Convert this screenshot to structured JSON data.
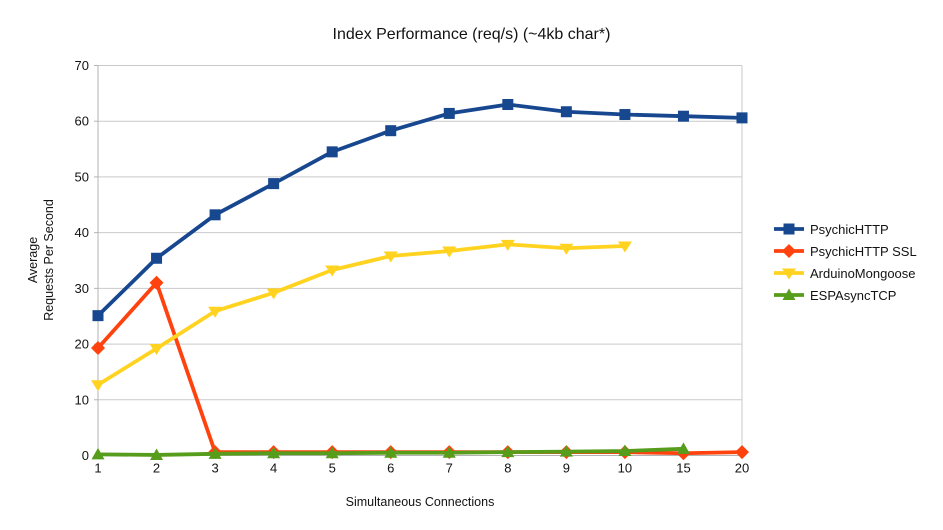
{
  "chart_data": {
    "type": "line",
    "title": "Index Performance (req/s) (~4kb char*)",
    "xlabel": "Simultaneous Connections",
    "ylabel_lines": [
      "Average",
      "Requests Per Second"
    ],
    "categories": [
      "1",
      "2",
      "3",
      "4",
      "5",
      "6",
      "7",
      "8",
      "9",
      "10",
      "15",
      "20"
    ],
    "y_ticks": [
      0,
      10,
      20,
      30,
      40,
      50,
      60,
      70
    ],
    "ylim": [
      0,
      70
    ],
    "grid": "horizontal",
    "legend_position": "right",
    "series": [
      {
        "name": "PsychicHTTP",
        "color": "#17478f",
        "marker": "square",
        "values": [
          25.1,
          35.4,
          43.2,
          48.8,
          54.5,
          58.3,
          61.4,
          63.0,
          61.7,
          61.2,
          60.9,
          60.6
        ]
      },
      {
        "name": "PsychicHTTP SSL",
        "color": "#ff420e",
        "marker": "diamond",
        "values": [
          19.3,
          31.0,
          0.6,
          0.6,
          0.6,
          0.6,
          0.6,
          0.6,
          0.6,
          0.6,
          0.4,
          0.6
        ]
      },
      {
        "name": "ArduinoMongoose",
        "color": "#ffd320",
        "marker": "triangle-down",
        "values": [
          12.7,
          19.2,
          25.9,
          29.2,
          33.3,
          35.8,
          36.7,
          37.9,
          37.2,
          37.6,
          null,
          null
        ]
      },
      {
        "name": "ESPAsyncTCP",
        "color": "#579d1c",
        "marker": "triangle-up",
        "values": [
          0.2,
          0.1,
          0.3,
          0.4,
          0.4,
          0.5,
          0.5,
          0.6,
          0.7,
          0.8,
          1.2,
          null
        ]
      }
    ]
  },
  "style": {
    "grid_color": "#c9c9c9",
    "axis_color": "#b3b3b3",
    "tick_label_color": "#131313",
    "background": "#ffffff"
  }
}
